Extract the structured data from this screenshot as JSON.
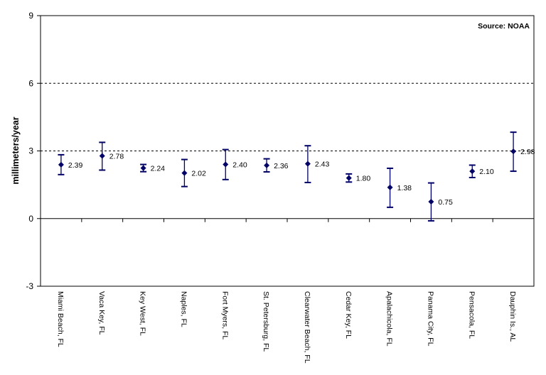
{
  "chart_data": {
    "type": "scatter",
    "ylabel": "millimeters/year",
    "annotation": "Source:  NOAA",
    "ylim": [
      -3,
      9
    ],
    "yticks": [
      -3,
      0,
      3,
      6,
      9
    ],
    "gridlines": [
      3,
      6
    ],
    "categories": [
      "Miami Beach, FL",
      "Vaca Key, FL",
      "Key West, FL",
      "Naples, FL",
      "Fort Myers, FL",
      "St. Petersburg, FL",
      "Clearwater Beach, FL",
      "Cedar Key, FL",
      "Apalachicola, FL",
      "Panama City, FL",
      "Pensacola, FL",
      "Dauphin Is., AL"
    ],
    "values": [
      2.39,
      2.78,
      2.24,
      2.02,
      2.4,
      2.36,
      2.43,
      1.8,
      1.38,
      0.75,
      2.1,
      2.98
    ],
    "labels": [
      "2.39",
      "2.78",
      "2.24",
      "2.02",
      "2.40",
      "2.36",
      "2.43",
      "1.80",
      "1.38",
      "0.75",
      "2.10",
      "2.98"
    ],
    "error_low": [
      1.95,
      2.15,
      2.08,
      1.42,
      1.73,
      2.07,
      1.6,
      1.62,
      0.5,
      -0.1,
      1.82,
      2.1
    ],
    "error_high": [
      2.83,
      3.38,
      2.4,
      2.62,
      3.06,
      2.65,
      3.23,
      1.98,
      2.23,
      1.58,
      2.37,
      3.83
    ],
    "color": "#000066"
  }
}
